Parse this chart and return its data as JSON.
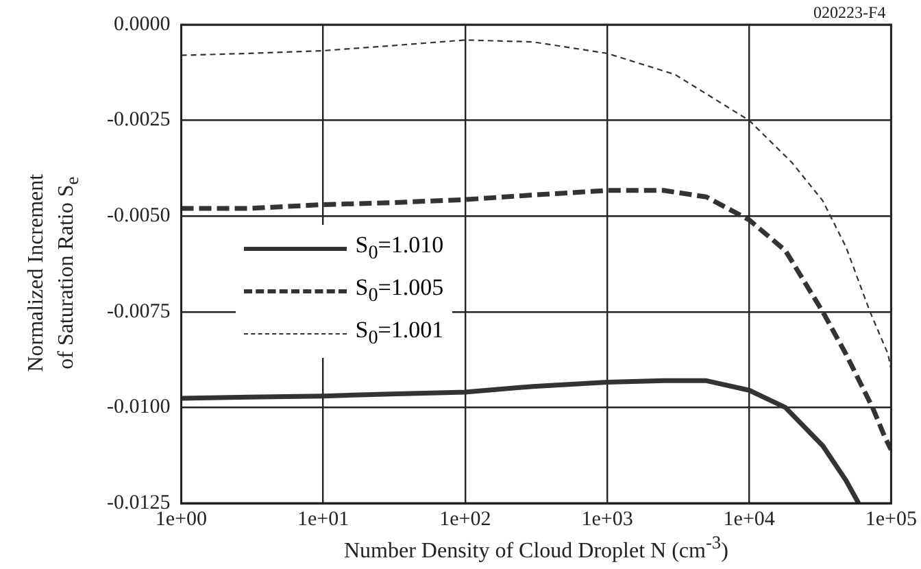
{
  "chart_data": {
    "type": "line",
    "xlabel": "Number Density of Cloud Droplet  N  (cm$^{-3}$)",
    "ylabel": "Normalized Increment\nof Saturation Ratio  S$_{e}$",
    "annotations": [
      "020223-F4"
    ],
    "log": "x",
    "xlim": [
      1,
      100000
    ],
    "xticks": [
      {
        "value": 1,
        "label": "1e+00"
      },
      {
        "value": 10,
        "label": "1e+01"
      },
      {
        "value": 100,
        "label": "1e+02"
      },
      {
        "value": 1000,
        "label": "1e+03"
      },
      {
        "value": 10000,
        "label": "1e+04"
      },
      {
        "value": 100000,
        "label": "1e+05"
      }
    ],
    "ylim": [
      -0.0125,
      0
    ],
    "yticks": [
      {
        "value": -0.0125,
        "label": "-0.0125"
      },
      {
        "value": -0.01,
        "label": "-0.0100"
      },
      {
        "value": -0.0075,
        "label": "-0.0075"
      },
      {
        "value": -0.005,
        "label": "-0.0050"
      },
      {
        "value": -0.0025,
        "label": "-0.0025"
      },
      {
        "value": 0,
        "label": "0.0000"
      }
    ],
    "grid": true,
    "legend": "left",
    "series": [
      {
        "name": "S$_{0}$=1.010",
        "color": "#333333",
        "line_style": "solid",
        "x": [
          1,
          3,
          10,
          30,
          100,
          300,
          1000,
          2500,
          5000,
          10000,
          18000,
          33000,
          48000,
          59000
        ],
        "values": [
          -0.00976,
          -0.00973,
          -0.0097,
          -0.00965,
          -0.0096,
          -0.00945,
          -0.00934,
          -0.0093,
          -0.0093,
          -0.00955,
          -0.01,
          -0.011,
          -0.0119,
          -0.0125
        ]
      },
      {
        "name": "S$_{0}$=1.005",
        "color": "#333333",
        "line_style": "dashed",
        "x": [
          1,
          3,
          10,
          30,
          100,
          300,
          1000,
          2500,
          5000,
          10000,
          18000,
          33000,
          48000,
          74000,
          91000,
          100000
        ],
        "values": [
          -0.0048,
          -0.0048,
          -0.0047,
          -0.00465,
          -0.00457,
          -0.00445,
          -0.00433,
          -0.00433,
          -0.0045,
          -0.0051,
          -0.0059,
          -0.0075,
          -0.0086,
          -0.01,
          -0.0108,
          -0.0111
        ]
      },
      {
        "name": "S$_{0}$=1.001",
        "color": "#333333",
        "line_style": "dashed",
        "x": [
          1,
          3,
          10,
          30,
          100,
          300,
          1000,
          3000,
          10000,
          20000,
          33000,
          48000,
          71000,
          95000,
          100000
        ],
        "values": [
          -0.0008,
          -0.00075,
          -0.00068,
          -0.00055,
          -0.0004,
          -0.00045,
          -0.00075,
          -0.0013,
          -0.0025,
          -0.0036,
          -0.0046,
          -0.0058,
          -0.0075,
          -0.0086,
          -0.009
        ]
      }
    ]
  }
}
